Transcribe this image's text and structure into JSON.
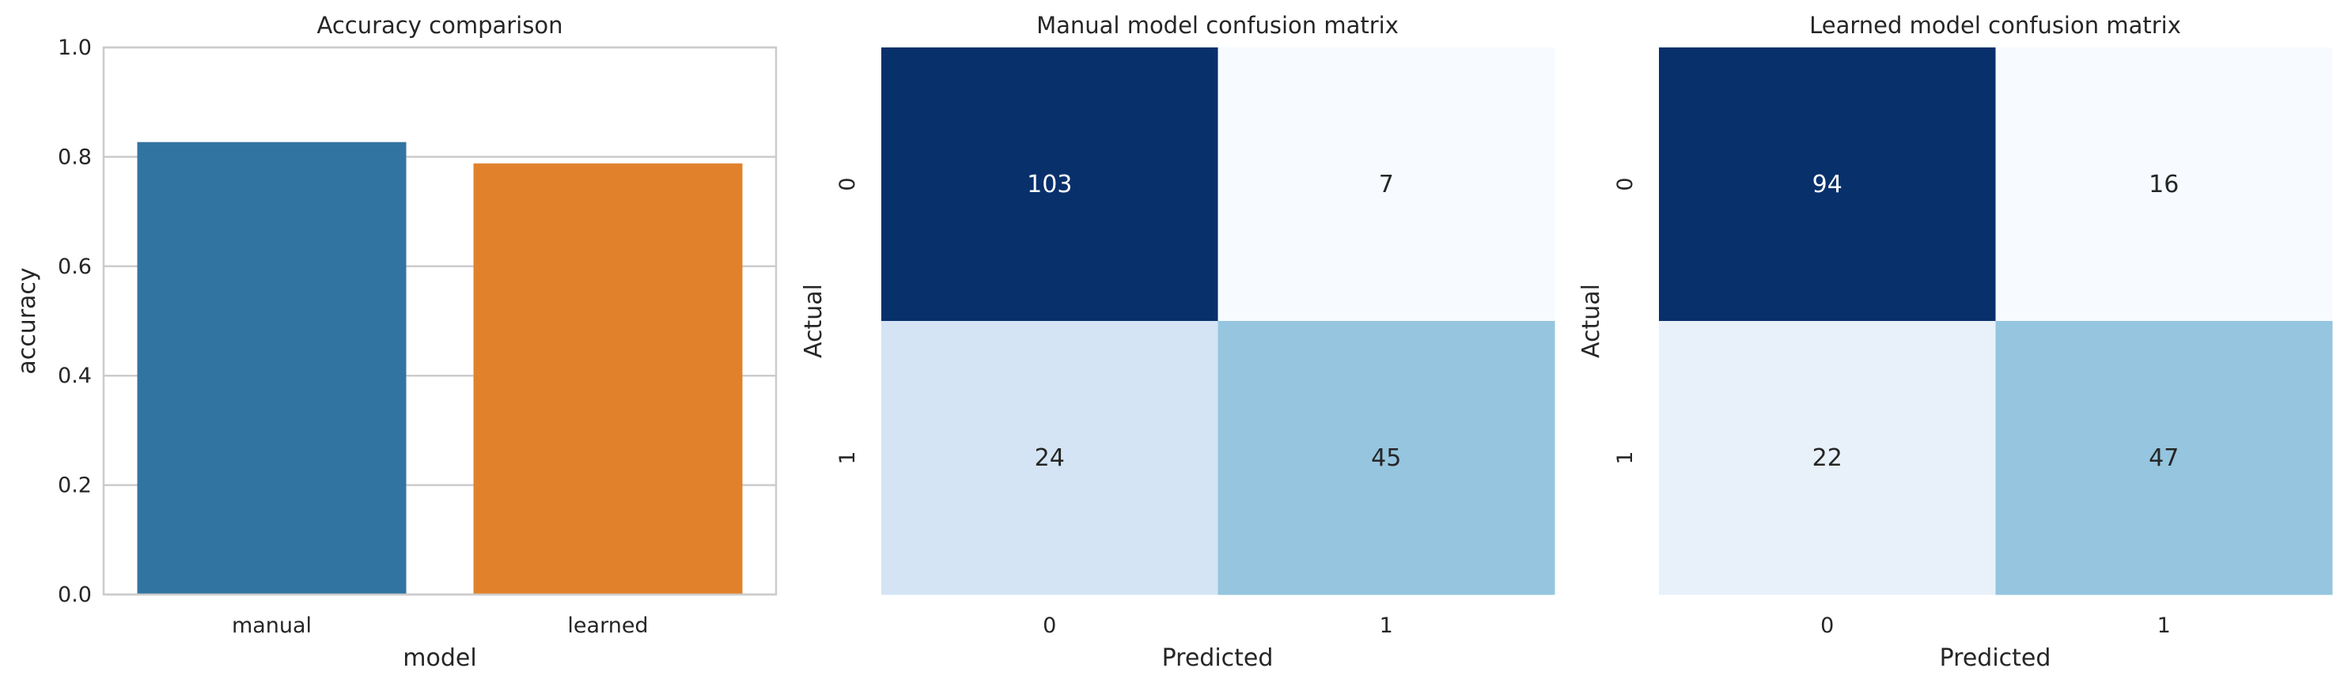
{
  "chart_data": [
    {
      "type": "bar",
      "title": "Accuracy comparison",
      "xlabel": "model",
      "ylabel": "accuracy",
      "categories": [
        "manual",
        "learned"
      ],
      "values": [
        0.827,
        0.788
      ],
      "colors": [
        "#3274a1",
        "#e1812c"
      ],
      "ylim": [
        0,
        1
      ],
      "yticks": [
        "0.0",
        "0.2",
        "0.4",
        "0.6",
        "0.8",
        "1.0"
      ],
      "grid": true
    },
    {
      "type": "heatmap",
      "title": "Manual model confusion matrix",
      "xlabel": "Predicted",
      "ylabel": "Actual",
      "x_categories": [
        "0",
        "1"
      ],
      "y_categories": [
        "0",
        "1"
      ],
      "values": [
        [
          103,
          7
        ],
        [
          24,
          45
        ]
      ],
      "colormap": "Blues"
    },
    {
      "type": "heatmap",
      "title": "Learned model confusion matrix",
      "xlabel": "Predicted",
      "ylabel": "Actual",
      "x_categories": [
        "0",
        "1"
      ],
      "y_categories": [
        "0",
        "1"
      ],
      "values": [
        [
          94,
          16
        ],
        [
          22,
          47
        ]
      ],
      "colormap": "Blues"
    }
  ]
}
